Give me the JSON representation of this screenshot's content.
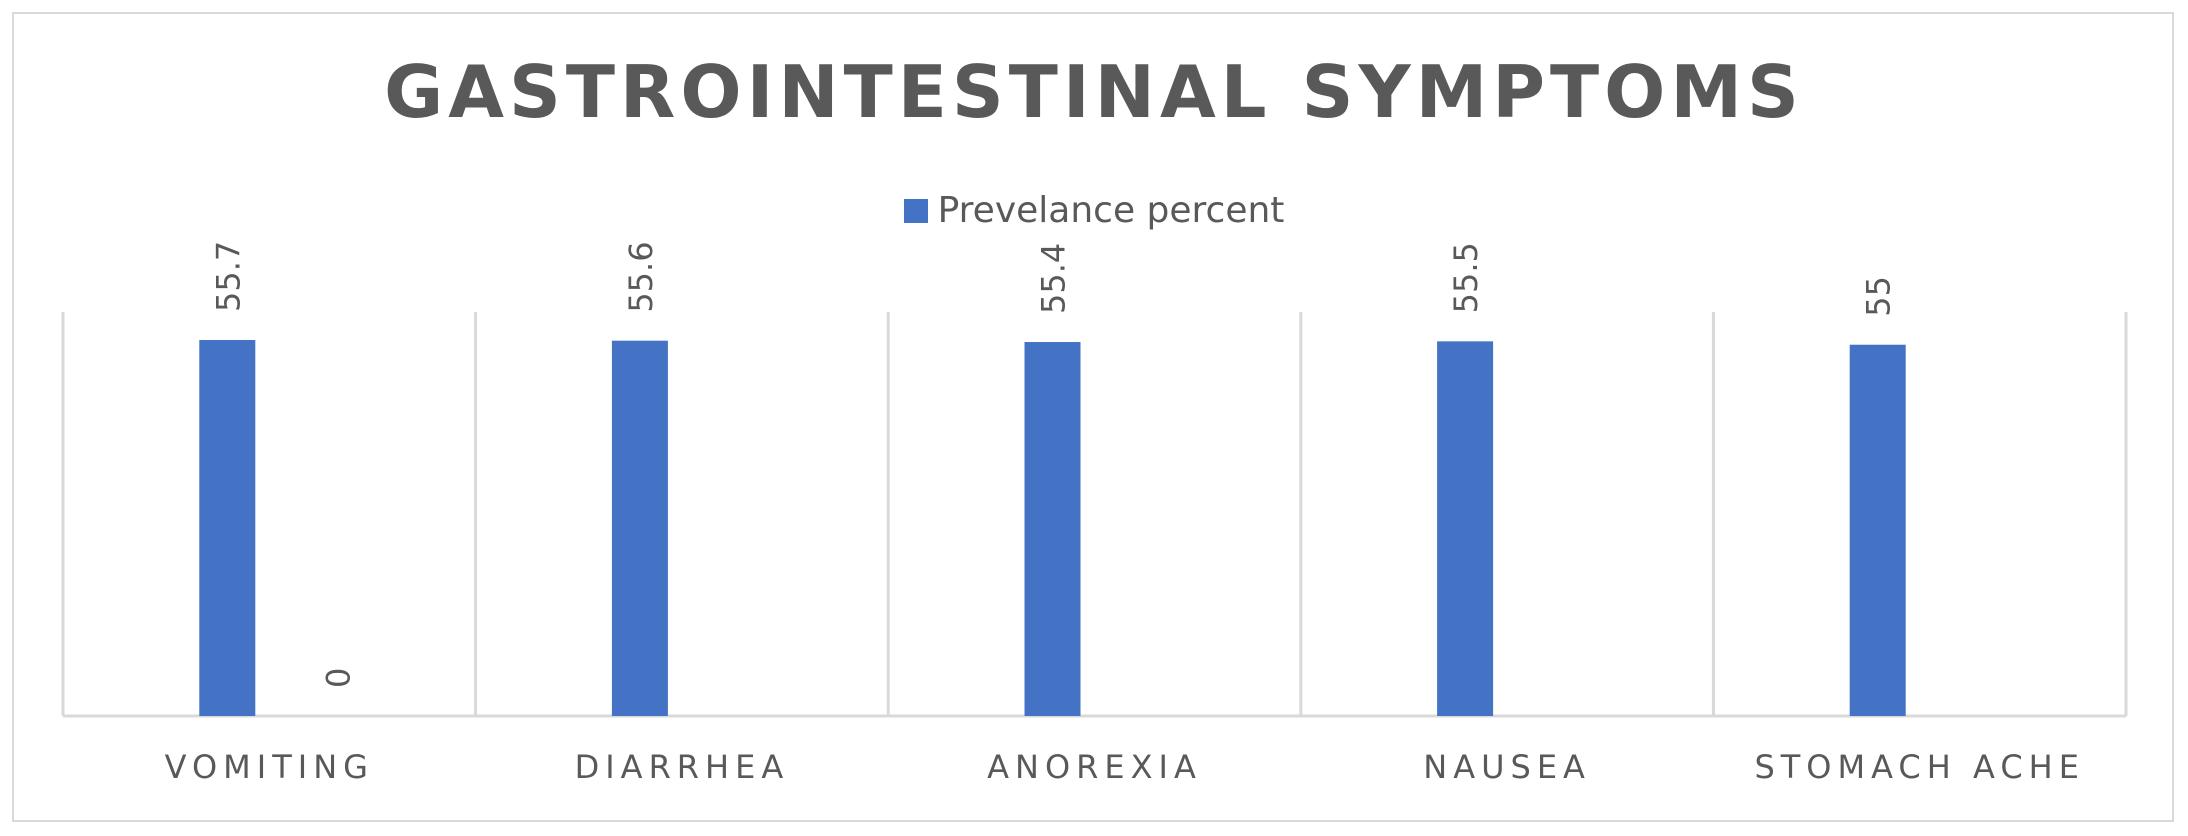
{
  "chart_data": {
    "type": "bar",
    "title": "GASTROINTESTINAL SYMPTOMS",
    "xlabel": "",
    "ylabel": "",
    "categories": [
      "VOMITING",
      "DIARRHEA",
      "ANOREXIA",
      "NAUSEA",
      "STOMACH ACHE"
    ],
    "series": [
      {
        "name": "Prevelance percent",
        "values": [
          55.7,
          55.6,
          55.4,
          55.5,
          55
        ],
        "color": "#4472c4"
      },
      {
        "values": [
          0,
          null,
          null,
          null,
          null
        ],
        "color": "#ed7d31"
      }
    ],
    "ylim": [
      0,
      60
    ],
    "grid": false,
    "legend_position": "top"
  },
  "colors": {
    "bar": "#4472c4",
    "text": "#595959",
    "axis": "#d9d9d9"
  }
}
